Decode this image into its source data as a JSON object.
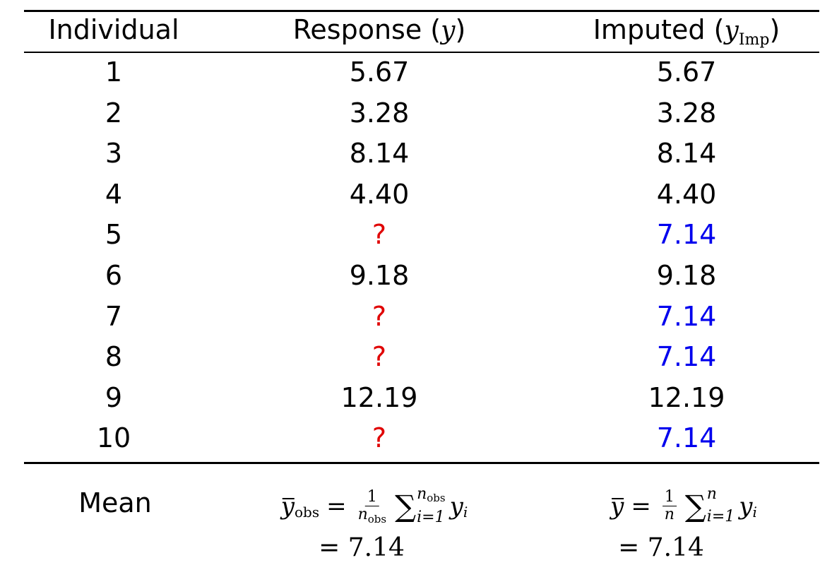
{
  "header": {
    "individual": "Individual",
    "response_label": "Response",
    "response_symbol": "y",
    "imputed_label": "Imputed",
    "imputed_symbol": "y",
    "imputed_subscript": "Imp"
  },
  "rows": [
    {
      "individual": "1",
      "response": "5.67",
      "imputed": "5.67",
      "missing": false
    },
    {
      "individual": "2",
      "response": "3.28",
      "imputed": "3.28",
      "missing": false
    },
    {
      "individual": "3",
      "response": "8.14",
      "imputed": "8.14",
      "missing": false
    },
    {
      "individual": "4",
      "response": "4.40",
      "imputed": "4.40",
      "missing": false
    },
    {
      "individual": "5",
      "response": "?",
      "imputed": "7.14",
      "missing": true
    },
    {
      "individual": "6",
      "response": "9.18",
      "imputed": "9.18",
      "missing": false
    },
    {
      "individual": "7",
      "response": "?",
      "imputed": "7.14",
      "missing": true
    },
    {
      "individual": "8",
      "response": "?",
      "imputed": "7.14",
      "missing": true
    },
    {
      "individual": "9",
      "response": "12.19",
      "imputed": "12.19",
      "missing": false
    },
    {
      "individual": "10",
      "response": "?",
      "imputed": "7.14",
      "missing": true
    }
  ],
  "footer": {
    "mean_label": "Mean",
    "obs_formula": {
      "lhs": "y",
      "lhs_sub": "obs",
      "equals": "=",
      "frac_num": "1",
      "frac_den": "n",
      "frac_den_sub": "obs",
      "sum_upper": "n",
      "sum_upper_sub": "obs",
      "sum_lower": "i=1",
      "term": "y",
      "term_sub": "i",
      "result": "= 7.14"
    },
    "imp_formula": {
      "lhs": "y",
      "equals": "=",
      "frac_num": "1",
      "frac_den": "n",
      "sum_upper": "n",
      "sum_lower": "i=1",
      "term": "y",
      "term_sub": "i",
      "result": "= 7.14"
    }
  },
  "colors": {
    "missing": "#e00000",
    "imputed": "#0000ee",
    "text": "#000000"
  }
}
